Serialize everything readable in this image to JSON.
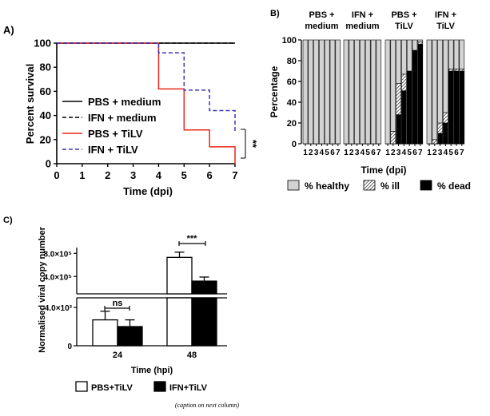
{
  "chart_data": [
    {
      "panel": "A)",
      "type": "line",
      "xlabel": "Time (dpi)",
      "ylabel": "Percent survival",
      "xlim": [
        0,
        7
      ],
      "ylim": [
        0,
        100
      ],
      "x_ticks": [
        "0",
        "1",
        "2",
        "3",
        "4",
        "5",
        "6",
        "7"
      ],
      "y_ticks": [
        "0",
        "20",
        "40",
        "60",
        "80",
        "100"
      ],
      "legend": [
        "PBS + medium",
        "IFN + medium",
        "PBS + TiLV",
        "IFN + TiLV"
      ],
      "significance": "**",
      "series": [
        {
          "name": "PBS + medium",
          "color": "#000000",
          "dash": "solid",
          "steps": [
            [
              0,
              100
            ],
            [
              7,
              100
            ]
          ]
        },
        {
          "name": "IFN + medium",
          "color": "#000000",
          "dash": "dashed",
          "steps": [
            [
              0,
              100
            ],
            [
              7,
              100
            ]
          ]
        },
        {
          "name": "PBS + TiLV",
          "color": "#e8271c",
          "dash": "solid",
          "steps": [
            [
              0,
              100
            ],
            [
              4,
              62
            ],
            [
              5,
              28
            ],
            [
              6,
              14
            ],
            [
              7,
              0
            ]
          ]
        },
        {
          "name": "IFN + TiLV",
          "color": "#3a35b8",
          "dash": "dashed",
          "steps": [
            [
              0,
              100
            ],
            [
              4,
              92
            ],
            [
              5,
              61
            ],
            [
              6,
              44
            ],
            [
              7,
              27
            ]
          ]
        }
      ]
    },
    {
      "panel": "B)",
      "type": "bar",
      "stacked": true,
      "xlabel": "Time (dpi)",
      "ylabel": "Percentage",
      "ylim": [
        0,
        100
      ],
      "y_ticks": [
        "0",
        "20",
        "40",
        "60",
        "80",
        "100"
      ],
      "day_labels": [
        "1",
        "2",
        "3",
        "4",
        "5",
        "6",
        "7"
      ],
      "groups": [
        {
          "label_lines": [
            "PBS +",
            "medium"
          ],
          "healthy": [
            100,
            100,
            100,
            100,
            100,
            100,
            100
          ],
          "ill": [
            0,
            0,
            0,
            0,
            0,
            0,
            0
          ],
          "dead": [
            0,
            0,
            0,
            0,
            0,
            0,
            0
          ]
        },
        {
          "label_lines": [
            "IFN +",
            "medium"
          ],
          "healthy": [
            100,
            100,
            100,
            100,
            100,
            100,
            100
          ],
          "ill": [
            0,
            0,
            0,
            0,
            0,
            0,
            0
          ],
          "dead": [
            0,
            0,
            0,
            0,
            0,
            0,
            0
          ]
        },
        {
          "label_lines": [
            "PBS +",
            "TiLV"
          ],
          "healthy": [
            100,
            88,
            42,
            33,
            30,
            10,
            2
          ],
          "ill": [
            0,
            12,
            30,
            16,
            0,
            0,
            2
          ],
          "dead": [
            0,
            0,
            28,
            51,
            70,
            90,
            96
          ]
        },
        {
          "label_lines": [
            "IFN +",
            "TiLV"
          ],
          "healthy": [
            100,
            96,
            80,
            70,
            28,
            28,
            28
          ],
          "ill": [
            0,
            4,
            10,
            10,
            2,
            2,
            2
          ],
          "dead": [
            0,
            0,
            10,
            20,
            70,
            70,
            70
          ]
        }
      ],
      "legend": [
        "% healthy",
        "% ill",
        "% dead"
      ],
      "colors": {
        "healthy": "#d3d3d3",
        "ill": "hatched",
        "dead": "#000000"
      }
    },
    {
      "panel": "C)",
      "type": "bar",
      "xlabel": "Time (hpi)",
      "ylabel": "Normalised viral copy number",
      "categories": [
        "24",
        "48"
      ],
      "y_ticks_upper": [
        "4.0×10⁵",
        "8.0×10⁵"
      ],
      "y_ticks_lower": [
        "0",
        "4.0×10³"
      ],
      "series": [
        {
          "name": "PBS+TiLV",
          "color": "#ffffff",
          "values": [
            2700,
            730000
          ],
          "errors": [
            900,
            90000
          ]
        },
        {
          "name": "IFN+TiLV",
          "color": "#000000",
          "values": [
            2000,
            320000
          ],
          "errors": [
            700,
            70000
          ]
        }
      ],
      "annotations": [
        {
          "category": "24",
          "text": "ns"
        },
        {
          "category": "48",
          "text": "***"
        }
      ]
    }
  ],
  "caption": "(caption on next column)"
}
